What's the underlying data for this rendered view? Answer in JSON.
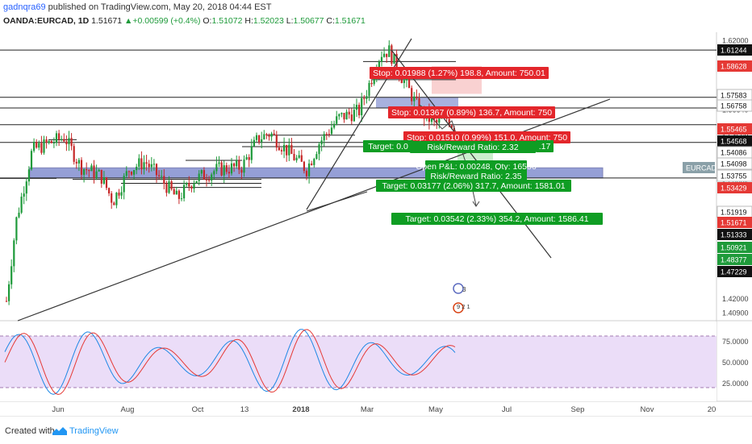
{
  "header": {
    "author": "gadnqra69",
    "published": "published on TradingView.com, May 20, 2018 04:44 EST",
    "symbol": "OANDA:EURCAD, 1D",
    "last": "1.51671",
    "change": "+0.00599 (+0.4%)",
    "o_label": "O:",
    "o": "1.51072",
    "h_label": "H:",
    "h": "1.52023",
    "l_label": "L:",
    "l": "1.50677",
    "c_label": "C:",
    "c": "1.51671"
  },
  "footer": {
    "created_with": "Created with",
    "brand": "TradingView"
  },
  "chart_data": {
    "type": "candlestick",
    "symbol": "EURCAD",
    "interval": "1D",
    "price_axis_ticks": [
      "1.62000",
      "1.60000",
      "1.56640",
      "1.54568",
      "1.52482",
      "1.50921",
      "1.48228",
      "1.42000",
      "1.40900"
    ],
    "price_badges": [
      {
        "value": "1.61244",
        "color": "#111111",
        "text_color": "#ffffff"
      },
      {
        "value": "1.58628",
        "color": "#e53935",
        "text_color": "#ffffff"
      },
      {
        "value": "1.57583",
        "color": "#ffffff",
        "text_color": "#111111"
      },
      {
        "value": "1.56758",
        "color": "#ffffff",
        "text_color": "#111111"
      },
      {
        "value": "1.55465",
        "color": "#e53935",
        "text_color": "#ffffff"
      },
      {
        "value": "1.54568",
        "color": "#111111",
        "text_color": "#ffffff"
      },
      {
        "value": "1.54086",
        "color": "#ffffff",
        "text_color": "#111111"
      },
      {
        "value": "1.54098",
        "color": "#ffffff",
        "text_color": "#111111"
      },
      {
        "value": "1.53755",
        "color": "#ffffff",
        "text_color": "#111111"
      },
      {
        "value": "1.53429",
        "color": "#e53935",
        "text_color": "#ffffff"
      },
      {
        "value": "1.51919",
        "color": "#ffffff",
        "text_color": "#111111"
      },
      {
        "value": "1.51671",
        "color": "#e53935",
        "text_color": "#ffffff"
      },
      {
        "value": "1.51333",
        "color": "#111111",
        "text_color": "#ffffff"
      },
      {
        "value": "1.50921",
        "color": "#1e9a3a",
        "text_color": "#ffffff"
      },
      {
        "value": "1.48377",
        "color": "#1e9a3a",
        "text_color": "#ffffff"
      },
      {
        "value": "1.47229",
        "color": "#111111",
        "text_color": "#ffffff"
      }
    ],
    "symbol_badge": "EURCAD",
    "time_axis_labels": [
      "Jun",
      "Aug",
      "Oct",
      "13",
      "2018",
      "Mar",
      "May",
      "Jul",
      "Sep",
      "Nov",
      "20"
    ],
    "oscillator_ticks": [
      "75.0000",
      "50.0000",
      "25.0000"
    ],
    "oscillator_band": [
      20,
      80
    ],
    "annotations": [
      {
        "kind": "stop",
        "text": "Stop: 0.01988 (1.27%) 198.8, Amount: 750.01"
      },
      {
        "kind": "stop",
        "text": "Stop: 0.01367 (0.89%) 136.7, Amount: 750"
      },
      {
        "kind": "stop",
        "text": "Stop: 0.01510 (0.99%) 151.0, Amount: 750"
      },
      {
        "kind": "target",
        "text": "Target: 0.0"
      },
      {
        "kind": "target",
        "text": ".17"
      },
      {
        "kind": "target",
        "text": "Risk/Reward Ratio: 2.32"
      },
      {
        "kind": "target",
        "text": "Open P&L: 0.00248, Qty: 16556"
      },
      {
        "kind": "target",
        "text": "Risk/Reward Ratio: 2.35"
      },
      {
        "kind": "target",
        "text": "Target: 0.03177 (2.06%) 317.7, Amount: 1581.01"
      },
      {
        "kind": "target",
        "text": "Target: 0.03542 (2.33%) 354.2, Amount: 1586.41"
      }
    ],
    "event_marks": [
      "3",
      "9 2 1"
    ],
    "colors": {
      "up": "#1e9a3a",
      "down": "#c62828",
      "zone": "#3f51b5",
      "osc_fill": "#e6d4f5",
      "k_line": "#1e88e5",
      "d_line": "#e53935"
    }
  }
}
